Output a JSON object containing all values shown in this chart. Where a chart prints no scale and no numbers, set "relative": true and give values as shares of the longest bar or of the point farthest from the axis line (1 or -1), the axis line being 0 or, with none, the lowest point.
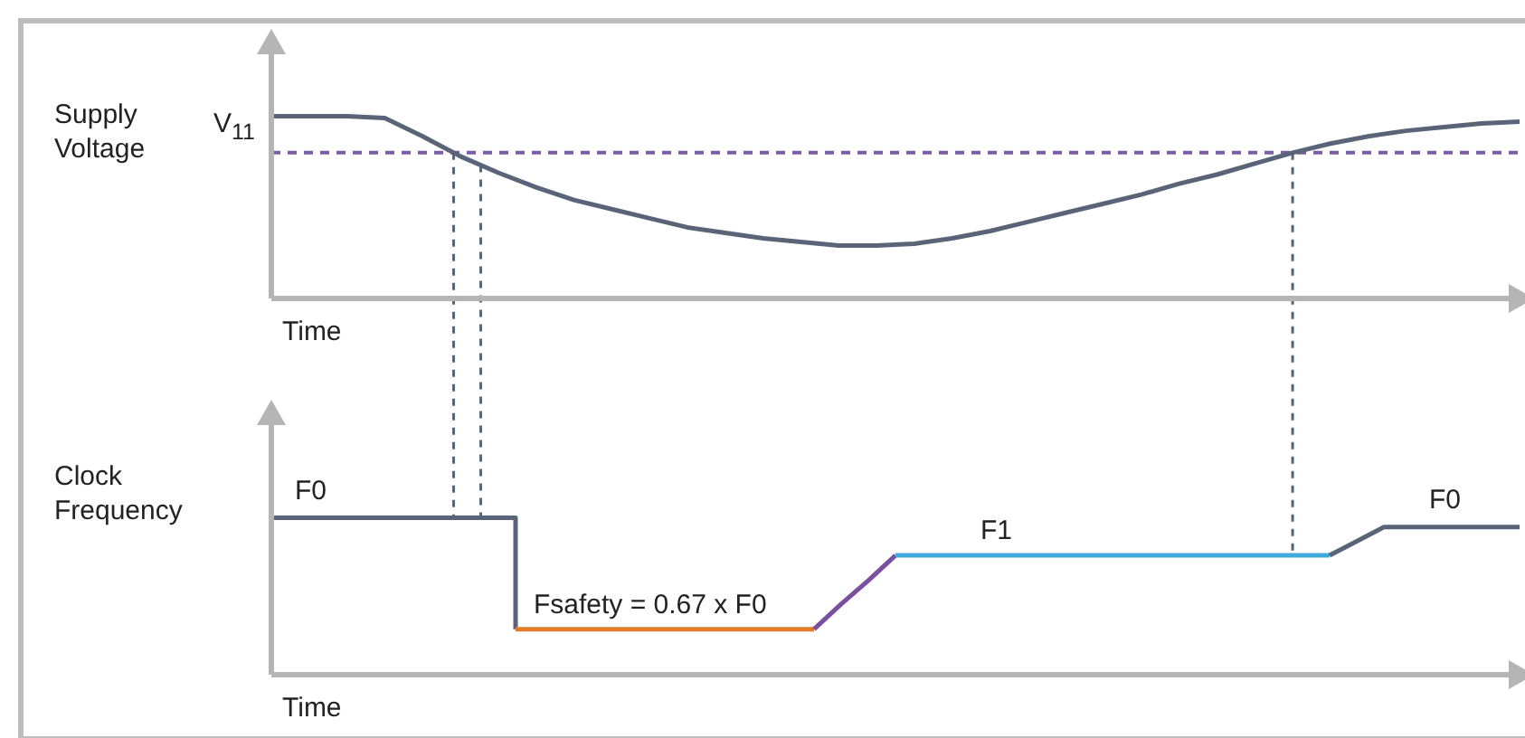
{
  "chart_data": [
    {
      "type": "line",
      "relative": true,
      "ylabel": "Supply Voltage",
      "xlabel": "Time",
      "categories": [
        null,
        null,
        null,
        null,
        null,
        null,
        null,
        null,
        null,
        null,
        null,
        null,
        null,
        null,
        null,
        null,
        null,
        null,
        null,
        null,
        null,
        null,
        null,
        null,
        null,
        null,
        null,
        null,
        null,
        null,
        null,
        null,
        null,
        null
      ],
      "series": [
        {
          "color": "#5a6478",
          "values": [
            1.0,
            1.0,
            1.0,
            0.99,
            0.89,
            0.78,
            0.69,
            0.61,
            0.54,
            0.49,
            0.44,
            0.39,
            0.36,
            0.33,
            0.31,
            0.29,
            0.29,
            0.3,
            0.33,
            0.37,
            0.42,
            0.47,
            0.52,
            0.57,
            0.63,
            0.68,
            0.74,
            0.8,
            0.85,
            0.89,
            0.92,
            0.94,
            0.96,
            0.97
          ]
        }
      ],
      "ref_lines": [
        {
          "axis": "y",
          "value": 0.8,
          "label": "V$_{11}$",
          "color": "#7b5ea7",
          "line_style": "dashed"
        }
      ]
    },
    {
      "type": "line",
      "relative": true,
      "ylabel": "Clock Frequency",
      "xlabel": "Time",
      "categories": [
        null,
        null,
        null,
        null,
        null,
        null,
        null,
        null,
        null,
        null,
        null,
        null,
        null,
        null,
        null,
        null,
        null,
        null,
        null,
        null,
        null,
        null,
        null,
        null,
        null,
        null,
        null,
        null,
        null,
        null,
        null,
        null,
        null,
        null,
        null,
        null,
        null,
        null,
        null,
        null,
        null,
        null,
        null,
        null,
        null,
        null,
        null
      ],
      "series": [
        {
          "type": "step",
          "color": "#5a6478",
          "values": [
            1,
            1,
            1,
            1,
            1,
            1,
            1,
            1,
            1,
            0.29,
            null,
            null,
            null,
            null,
            null,
            null,
            null,
            null,
            null,
            null,
            null,
            null,
            null,
            null,
            null,
            null,
            null,
            null,
            null,
            null,
            null,
            null,
            null,
            null,
            null,
            null,
            null,
            null,
            null,
            null,
            null,
            null,
            null,
            null,
            null,
            null,
            null
          ]
        },
        {
          "color": "#e07b28",
          "values": [
            null,
            null,
            null,
            null,
            null,
            null,
            null,
            null,
            null,
            0.29,
            0.29,
            0.29,
            0.29,
            0.29,
            0.29,
            0.29,
            0.29,
            0.29,
            0.29,
            0.29,
            0.29,
            null,
            null,
            null,
            null,
            null,
            null,
            null,
            null,
            null,
            null,
            null,
            null,
            null,
            null,
            null,
            null,
            null,
            null,
            null,
            null,
            null,
            null,
            null,
            null,
            null,
            null
          ]
        },
        {
          "color": "#7b4fa0",
          "values": [
            null,
            null,
            null,
            null,
            null,
            null,
            null,
            null,
            null,
            null,
            null,
            null,
            null,
            null,
            null,
            null,
            null,
            null,
            null,
            null,
            0.29,
            0.45,
            0.6,
            0.76,
            null,
            null,
            null,
            null,
            null,
            null,
            null,
            null,
            null,
            null,
            null,
            null,
            null,
            null,
            null,
            null,
            null,
            null,
            null,
            null,
            null,
            null,
            null
          ]
        },
        {
          "color": "#3fa9dc",
          "values": [
            null,
            null,
            null,
            null,
            null,
            null,
            null,
            null,
            null,
            null,
            null,
            null,
            null,
            null,
            null,
            null,
            null,
            null,
            null,
            null,
            null,
            null,
            null,
            0.76,
            0.76,
            0.76,
            0.76,
            0.76,
            0.76,
            0.76,
            0.76,
            0.76,
            0.76,
            0.76,
            0.76,
            0.76,
            0.76,
            0.76,
            0.76,
            0.76,
            null,
            null,
            null,
            null,
            null,
            null,
            null
          ]
        },
        {
          "color": "#5a6478",
          "values": [
            null,
            null,
            null,
            null,
            null,
            null,
            null,
            null,
            null,
            null,
            null,
            null,
            null,
            null,
            null,
            null,
            null,
            null,
            null,
            null,
            null,
            null,
            null,
            null,
            null,
            null,
            null,
            null,
            null,
            null,
            null,
            null,
            null,
            null,
            null,
            null,
            null,
            null,
            null,
            0.76,
            0.85,
            0.94,
            0.94,
            0.94,
            0.94,
            0.94,
            0.94
          ]
        }
      ],
      "annotations": [
        "F0",
        "Fsafety = 0.67 x F0",
        "F1",
        "F0"
      ]
    }
  ]
}
